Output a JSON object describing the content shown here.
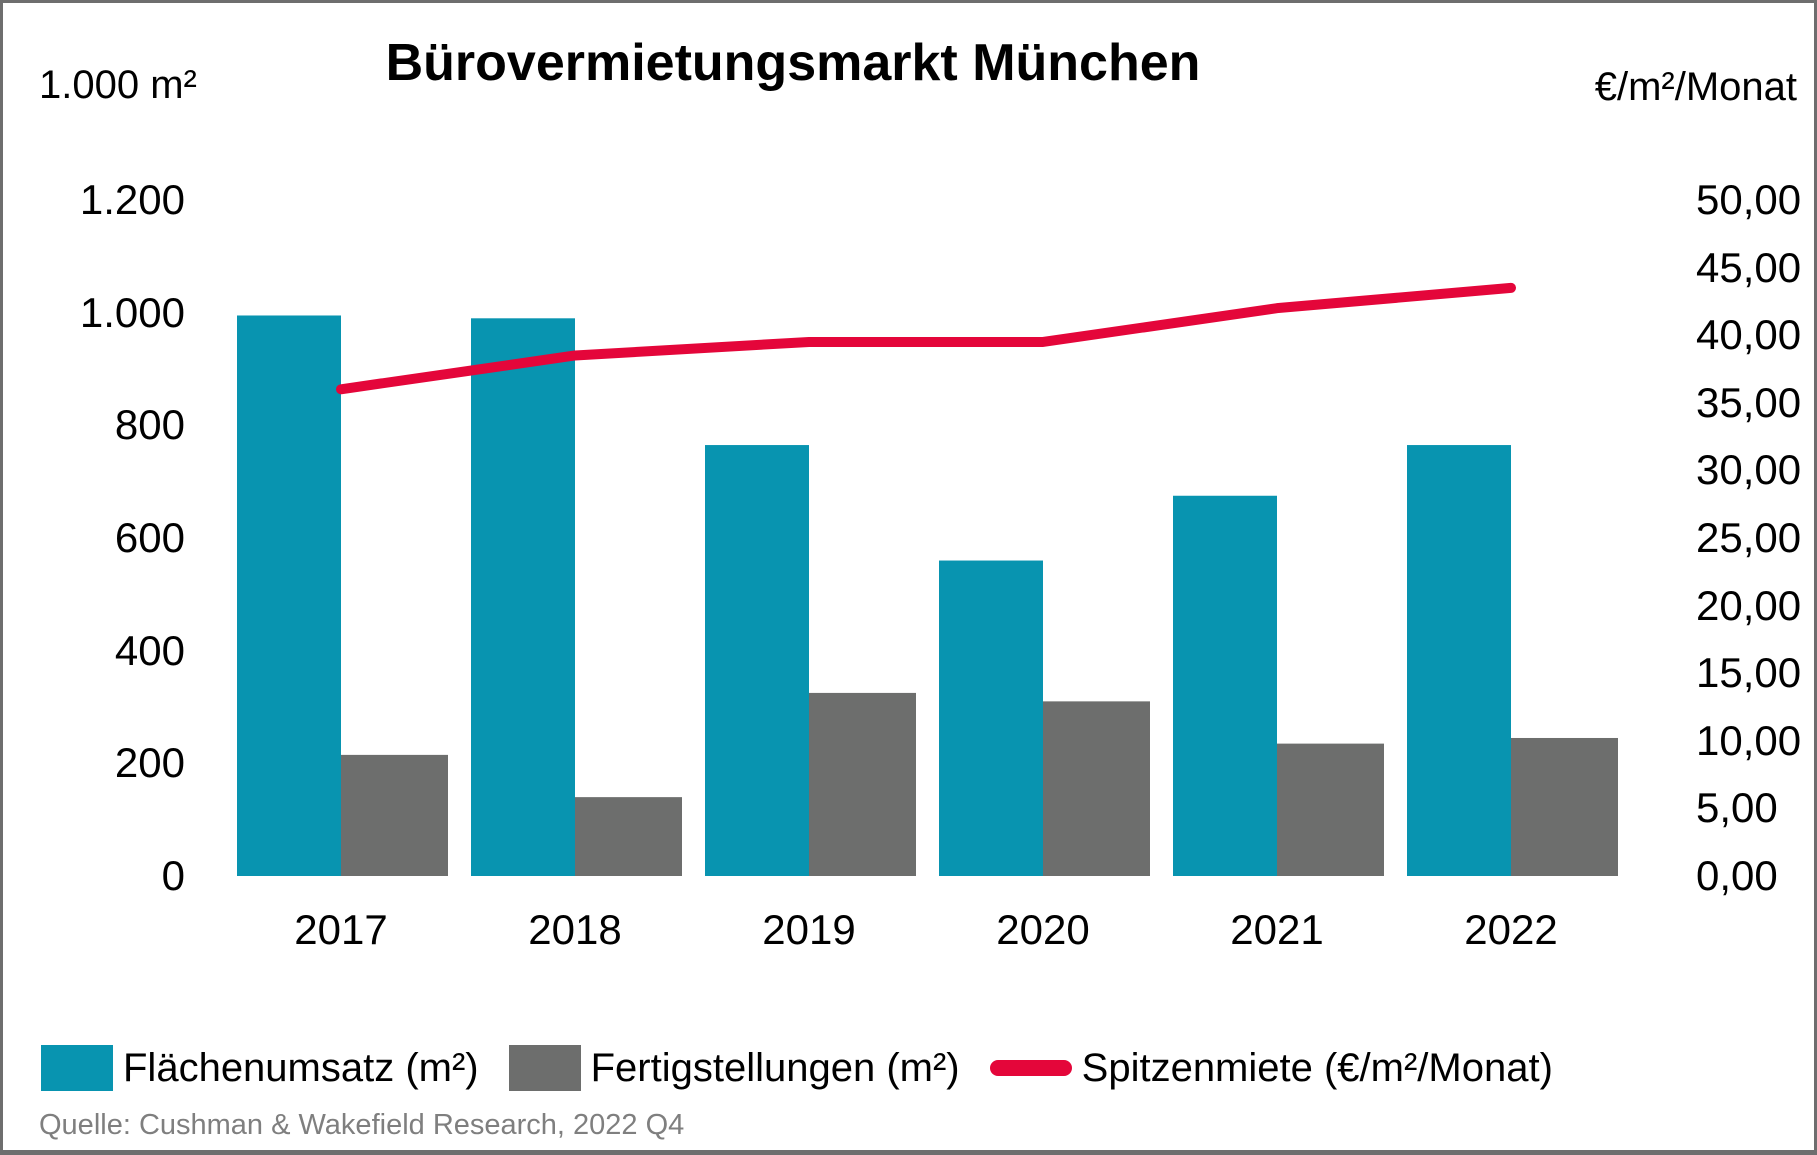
{
  "title": "Bürovermietungsmarkt München",
  "left_axis_unit": "1.000 m²",
  "right_axis_unit": "€/m²/Monat",
  "left_axis_ticks": [
    "1.200",
    "1.000",
    "800",
    "600",
    "400",
    "200",
    "0"
  ],
  "right_axis_ticks": [
    "50,00",
    "45,00",
    "40,00",
    "35,00",
    "30,00",
    "25,00",
    "20,00",
    "15,00",
    "10,00",
    "5,00",
    "0,00"
  ],
  "x_axis_labels": [
    "2017",
    "2018",
    "2019",
    "2020",
    "2021",
    "2022"
  ],
  "legend": {
    "flaechenumsatz": "Flächenumsatz (m²)",
    "fertigstellungen": "Fertigstellungen (m²)",
    "spitzenmiete": "Spitzenmiete (€/m²/Monat)"
  },
  "source": "Quelle: Cushman & Wakefield Research, 2022 Q4",
  "colors": {
    "teal": "#0894B0",
    "gray": "#6D6E6D",
    "red": "#E4063A",
    "text": "#000000",
    "source_text": "#7F7F7F",
    "border": "#6E6E6E"
  },
  "chart_data": {
    "type": "bar",
    "subtype": "grouped bars with secondary-axis line",
    "title": "Bürovermietungsmarkt München",
    "categories": [
      "2017",
      "2018",
      "2019",
      "2020",
      "2021",
      "2022"
    ],
    "series": [
      {
        "name": "Flächenumsatz (m²)",
        "type": "bar",
        "axis": "left",
        "color": "#0894B0",
        "values": [
          995,
          990,
          765,
          560,
          675,
          765
        ]
      },
      {
        "name": "Fertigstellungen (m²)",
        "type": "bar",
        "axis": "left",
        "color": "#6D6E6D",
        "values": [
          215,
          140,
          325,
          310,
          235,
          245
        ]
      },
      {
        "name": "Spitzenmiete (€/m²/Monat)",
        "type": "line",
        "axis": "right",
        "color": "#E4063A",
        "values": [
          36.0,
          38.5,
          39.5,
          39.5,
          42.0,
          43.5
        ]
      }
    ],
    "left_axis": {
      "label": "1.000 m²",
      "min": 0,
      "max": 1200,
      "step": 200
    },
    "right_axis": {
      "label": "€/m²/Monat",
      "min": 0,
      "max": 50,
      "step": 5
    },
    "grid": false,
    "legend_position": "bottom"
  }
}
